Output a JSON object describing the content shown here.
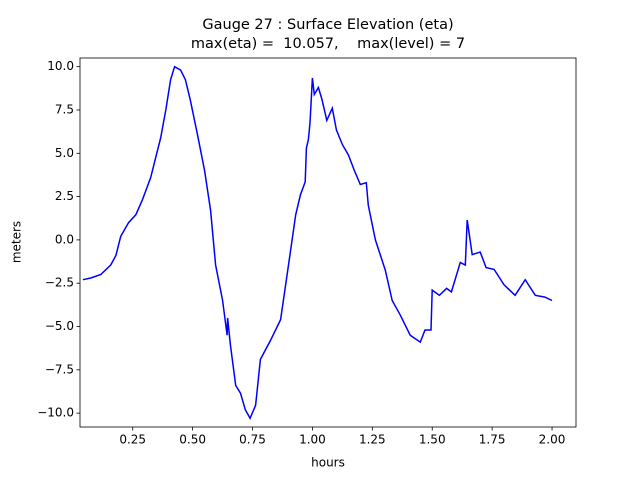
{
  "chart_data": {
    "type": "line",
    "title": [
      "Gauge 27 : Surface Elevation (eta)",
      "max(eta) =  10.057,    max(level) = 7"
    ],
    "x_label": "hours",
    "y_label": "meters",
    "xlim": [
      0.03,
      2.1
    ],
    "ylim": [
      -10.8,
      10.5
    ],
    "xticks": [
      0.25,
      {
        "value": 0.5,
        "label": "0.50"
      },
      0.75,
      {
        "value": 1.0,
        "label": "1.00"
      },
      1.25,
      {
        "value": 1.5,
        "label": "1.50"
      },
      1.75,
      {
        "value": 2.0,
        "label": "2.00"
      }
    ],
    "yticks": [
      {
        "value": -10,
        "label": "−10.0"
      },
      {
        "value": -7.5,
        "label": "−7.5"
      },
      {
        "value": -5,
        "label": "−5.0"
      },
      {
        "value": -2.5,
        "label": "−2.5"
      },
      {
        "value": 0,
        "label": "0.0"
      },
      {
        "value": 2.5,
        "label": "2.5"
      },
      {
        "value": 5,
        "label": "5.0"
      },
      {
        "value": 7.5,
        "label": "7.5"
      },
      {
        "value": 10,
        "label": "10.0"
      }
    ],
    "x": [
      0.042,
      0.075,
      0.117,
      0.158,
      0.18,
      0.2,
      0.233,
      0.263,
      0.29,
      0.325,
      0.346,
      0.367,
      0.388,
      0.408,
      0.425,
      0.45,
      0.47,
      0.49,
      0.52,
      0.55,
      0.575,
      0.596,
      0.625,
      0.644,
      0.646,
      0.658,
      0.68,
      0.7,
      0.72,
      0.74,
      0.763,
      0.783,
      0.825,
      0.867,
      0.9,
      0.93,
      0.95,
      0.97,
      0.975,
      0.983,
      0.99,
      1.0,
      1.008,
      1.025,
      1.04,
      1.06,
      1.083,
      1.1,
      1.125,
      1.15,
      1.175,
      1.2,
      1.225,
      1.233,
      1.263,
      1.304,
      1.333,
      1.367,
      1.408,
      1.45,
      1.47,
      1.495,
      1.5,
      1.53,
      1.56,
      1.58,
      1.617,
      1.638,
      1.646,
      1.667,
      1.7,
      1.725,
      1.758,
      1.8,
      1.846,
      1.888,
      1.93,
      1.97,
      2.0
    ],
    "series": [
      {
        "name": "eta",
        "color": "#0000ff",
        "values": [
          -2.3,
          -2.2,
          -2.0,
          -1.45,
          -0.9,
          0.2,
          1.0,
          1.45,
          2.3,
          3.6,
          4.75,
          5.9,
          7.5,
          9.25,
          10.0,
          9.8,
          9.25,
          8.1,
          6.1,
          4.0,
          1.7,
          -1.45,
          -3.5,
          -5.5,
          -4.5,
          -6.1,
          -8.4,
          -8.85,
          -9.8,
          -10.3,
          -9.55,
          -6.9,
          -5.8,
          -4.6,
          -1.45,
          1.45,
          2.6,
          3.35,
          5.3,
          5.8,
          6.75,
          9.35,
          8.4,
          8.8,
          8.1,
          6.9,
          7.6,
          6.35,
          5.5,
          4.9,
          4.0,
          3.2,
          3.3,
          2.0,
          0.0,
          -1.75,
          -3.5,
          -4.35,
          -5.5,
          -5.9,
          -5.2,
          -5.2,
          -2.9,
          -3.2,
          -2.8,
          -3.0,
          -1.3,
          -1.45,
          1.15,
          -0.85,
          -0.7,
          -1.6,
          -1.7,
          -2.6,
          -3.2,
          -2.3,
          -3.2,
          -3.3,
          -3.5
        ]
      }
    ]
  }
}
